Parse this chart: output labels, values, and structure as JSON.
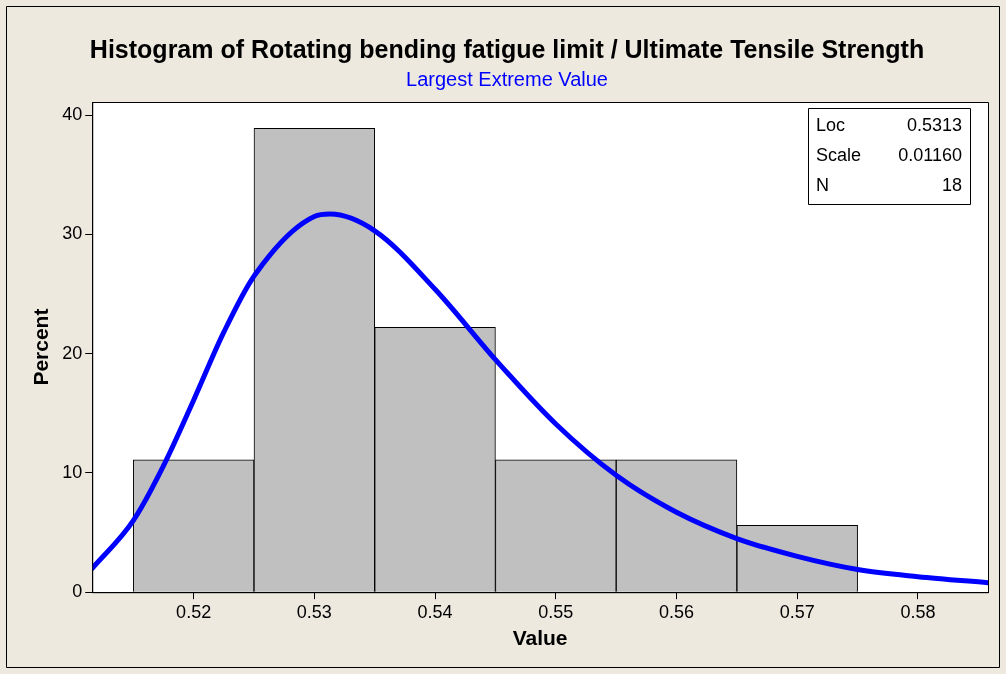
{
  "chart_data": {
    "type": "histogram",
    "title": "Histogram of Rotating bending fatigue limit / Ultimate Tensile Strength",
    "subtitle": "Largest Extreme Value",
    "xlabel": "Value",
    "ylabel": "Percent",
    "bins": [
      0.515,
      0.525,
      0.535,
      0.545,
      0.555,
      0.565,
      0.575
    ],
    "values": [
      11.1,
      38.9,
      22.2,
      11.1,
      11.1,
      5.6
    ],
    "color": "#c0c0c0",
    "series": [
      {
        "type": "line",
        "color": "#0000ff",
        "x": [
          0.5116,
          0.515,
          0.5175,
          0.52,
          0.5225,
          0.525,
          0.53,
          0.5313,
          0.535,
          0.54,
          0.545,
          0.55,
          0.555,
          0.56,
          0.565,
          0.57,
          0.575,
          0.58,
          0.5858
        ],
        "values": [
          2.0,
          6.0,
          10.6,
          16.1,
          21.8,
          26.5,
          31.5,
          31.7,
          30.3,
          25.4,
          19.5,
          14.1,
          9.8,
          6.7,
          4.5,
          3.0,
          1.9,
          1.3,
          0.8
        ]
      }
    ],
    "xlim": [
      0.5116,
      0.5858
    ],
    "xticks": [
      {
        "value": 0.52,
        "label": "0.52"
      },
      {
        "value": 0.53,
        "label": "0.53"
      },
      {
        "value": 0.54,
        "label": "0.54"
      },
      {
        "value": 0.55,
        "label": "0.55"
      },
      {
        "value": 0.56,
        "label": "0.56"
      },
      {
        "value": 0.57,
        "label": "0.57"
      },
      {
        "value": 0.58,
        "label": "0.58"
      }
    ],
    "ylim": [
      0,
      41.1
    ],
    "yticks": [
      0,
      10,
      20,
      30,
      40
    ],
    "marker": "none",
    "annotations": [
      "Loc 0.5313",
      "Scale 0.01160",
      "N 18"
    ]
  }
}
